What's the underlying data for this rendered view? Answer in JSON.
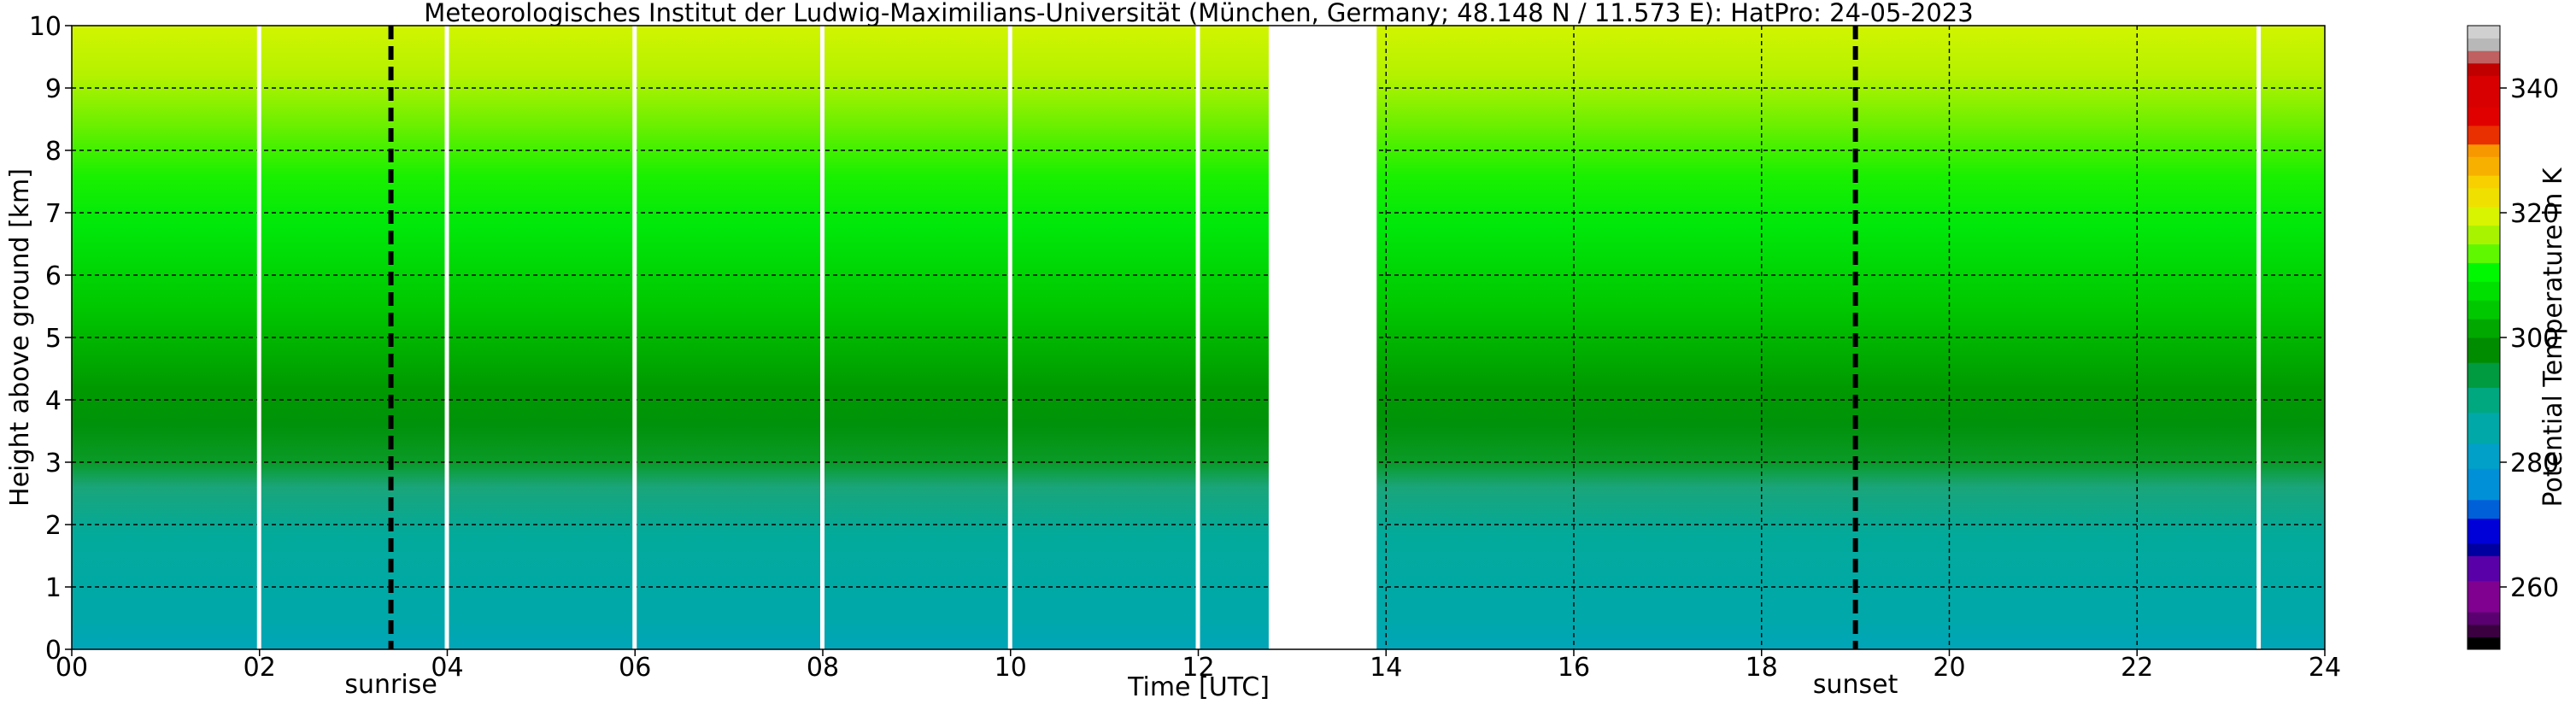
{
  "chart_data": {
    "type": "heatmap",
    "title": "Meteorologisches Institut der Ludwig-Maximilians-Universität (München, Germany; 48.148 N / 11.573 E):    HatPro: 24-05-2023",
    "xlabel": "Time [UTC]",
    "ylabel": "Height above ground [km]",
    "xlim": [
      0,
      24
    ],
    "ylim": [
      0,
      10
    ],
    "x_ticks": [
      "00",
      "02",
      "04",
      "06",
      "08",
      "10",
      "12",
      "14",
      "16",
      "18",
      "20",
      "22",
      "24"
    ],
    "y_ticks": [
      "0",
      "1",
      "2",
      "3",
      "4",
      "5",
      "6",
      "7",
      "8",
      "9",
      "10"
    ],
    "grid": true,
    "colorbar": {
      "label": "Potential Temperature in K",
      "range": [
        250,
        350
      ],
      "ticks": [
        "260",
        "280",
        "300",
        "320",
        "340"
      ]
    },
    "annotations": [
      {
        "text": "sunrise",
        "x": 3.4
      },
      {
        "text": "sunset",
        "x": 19.0
      }
    ],
    "data_gap": [
      12.75,
      13.9
    ],
    "profile": {
      "heights_km": [
        0,
        0.5,
        1,
        1.5,
        2,
        2.5,
        3,
        3.5,
        4,
        5,
        6,
        7,
        8,
        9,
        10
      ],
      "theta_K": [
        290,
        291,
        292,
        293,
        294,
        297,
        299,
        300,
        301,
        304,
        306,
        309,
        313,
        318,
        322
      ]
    }
  }
}
